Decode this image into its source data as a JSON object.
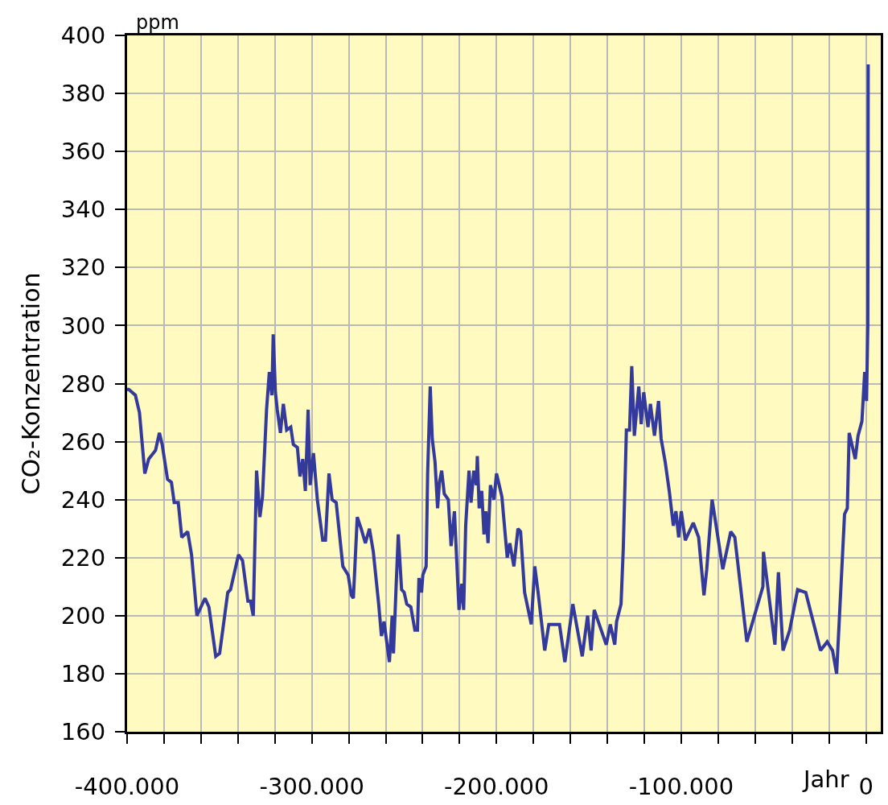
{
  "chart_data": {
    "type": "line",
    "xlabel": "Jahr",
    "ylabel": "CO₂-Konzentration",
    "annotations": [
      "ppm"
    ],
    "xlim": [
      -400000,
      8000
    ],
    "ylim": [
      160,
      400
    ],
    "xticks": [
      {
        "value": -400000,
        "label": "-400.000"
      },
      {
        "value": -380000,
        "label": null
      },
      {
        "value": -360000,
        "label": null
      },
      {
        "value": -340000,
        "label": null
      },
      {
        "value": -320000,
        "label": null
      },
      {
        "value": -300000,
        "label": "-300.000"
      },
      {
        "value": -280000,
        "label": null
      },
      {
        "value": -260000,
        "label": null
      },
      {
        "value": -240000,
        "label": null
      },
      {
        "value": -220000,
        "label": null
      },
      {
        "value": -200000,
        "label": "-200.000"
      },
      {
        "value": -180000,
        "label": null
      },
      {
        "value": -160000,
        "label": null
      },
      {
        "value": -140000,
        "label": null
      },
      {
        "value": -120000,
        "label": null
      },
      {
        "value": -100000,
        "label": "-100.000"
      },
      {
        "value": -80000,
        "label": null
      },
      {
        "value": -60000,
        "label": null
      },
      {
        "value": -40000,
        "label": null
      },
      {
        "value": -20000,
        "label": null
      },
      {
        "value": 0,
        "label": "0"
      }
    ],
    "yticks": [
      160,
      180,
      200,
      220,
      240,
      260,
      280,
      300,
      320,
      340,
      360,
      380,
      400
    ],
    "grid": true,
    "legend": false,
    "marker": "none",
    "line_style": "solid",
    "x": [
      -400000,
      -399100,
      -395500,
      -393300,
      -390400,
      -388300,
      -384600,
      -382500,
      -381000,
      -378100,
      -376000,
      -374500,
      -372300,
      -370400,
      -367200,
      -365100,
      -362200,
      -357800,
      -355700,
      -352000,
      -349900,
      -345500,
      -344000,
      -339700,
      -337500,
      -334600,
      -333200,
      -331700,
      -329900,
      -328100,
      -326700,
      -324500,
      -323000,
      -321600,
      -320900,
      -319700,
      -318700,
      -317000,
      -315400,
      -313600,
      -311400,
      -310000,
      -307800,
      -306400,
      -304900,
      -303500,
      -302000,
      -300900,
      -299100,
      -297000,
      -294100,
      -292600,
      -290700,
      -289000,
      -286800,
      -283200,
      -280300,
      -278600,
      -277500,
      -275400,
      -273300,
      -271000,
      -268800,
      -266700,
      -263800,
      -262300,
      -260900,
      -258000,
      -256500,
      -255800,
      -254300,
      -253200,
      -251400,
      -250000,
      -248600,
      -246400,
      -244200,
      -242800,
      -242000,
      -240600,
      -239900,
      -238100,
      -237300,
      -235900,
      -234800,
      -233300,
      -231900,
      -230900,
      -229700,
      -228300,
      -226100,
      -224600,
      -222800,
      -220300,
      -218800,
      -217800,
      -216700,
      -214900,
      -213800,
      -212300,
      -210900,
      -210400,
      -209400,
      -208000,
      -206800,
      -205800,
      -204600,
      -203300,
      -201400,
      -200000,
      -197100,
      -194200,
      -192800,
      -190600,
      -188400,
      -187000,
      -184800,
      -181200,
      -179300,
      -177500,
      -173900,
      -171700,
      -165900,
      -163000,
      -158700,
      -153600,
      -150700,
      -148800,
      -147100,
      -140600,
      -138400,
      -136000,
      -135000,
      -132600,
      -131400,
      -129700,
      -128000,
      -126800,
      -125400,
      -123000,
      -121700,
      -120300,
      -118000,
      -116700,
      -114500,
      -112300,
      -110900,
      -108700,
      -106500,
      -104300,
      -102900,
      -101400,
      -100000,
      -97800,
      -93500,
      -90600,
      -87700,
      -86200,
      -83300,
      -77500,
      -73200,
      -71000,
      -64500,
      -55800,
      -55500,
      -49300,
      -47400,
      -44900,
      -41300,
      -37000,
      -32600,
      -24600,
      -21000,
      -18100,
      -15900,
      -11600,
      -10100,
      -9100,
      -5800,
      -4300,
      -2200,
      -700,
      300,
      1000,
      1200
    ],
    "series": [
      {
        "color": "#343a9c",
        "values": [
          278,
          278,
          276,
          270,
          249,
          254,
          257,
          263,
          259,
          247,
          246,
          239,
          239,
          227,
          229,
          221,
          200,
          206,
          203,
          186,
          187,
          208,
          209,
          221,
          219,
          205,
          205,
          200,
          250,
          234,
          241,
          271,
          284,
          276,
          297,
          277,
          271,
          263,
          273,
          264,
          265,
          259,
          258,
          248,
          254,
          243,
          271,
          245,
          256,
          240,
          226,
          226,
          249,
          240,
          239,
          217,
          214,
          207,
          206,
          234,
          230,
          225,
          230,
          222,
          204,
          193,
          198,
          184,
          200,
          187,
          211,
          228,
          209,
          208,
          204,
          203,
          195,
          195,
          213,
          208,
          214,
          217,
          249,
          279,
          261,
          253,
          237,
          246,
          250,
          242,
          240,
          224,
          236,
          202,
          211,
          202,
          231,
          250,
          239,
          250,
          245,
          255,
          237,
          243,
          228,
          236,
          225,
          245,
          240,
          249,
          241,
          220,
          225,
          217,
          230,
          229,
          208,
          197,
          217,
          208,
          188,
          197,
          197,
          184,
          204,
          186,
          200,
          188,
          202,
          190,
          197,
          190,
          198,
          204,
          223,
          264,
          264,
          286,
          262,
          279,
          266,
          277,
          265,
          273,
          262,
          274,
          261,
          253,
          243,
          231,
          236,
          227,
          236,
          226,
          232,
          227,
          207,
          216,
          240,
          216,
          229,
          227,
          191,
          210,
          222,
          190,
          215,
          188,
          195,
          209,
          208,
          188,
          191,
          188,
          180,
          235,
          237,
          263,
          254,
          262,
          267,
          284,
          274,
          300,
          390
        ]
      }
    ]
  }
}
